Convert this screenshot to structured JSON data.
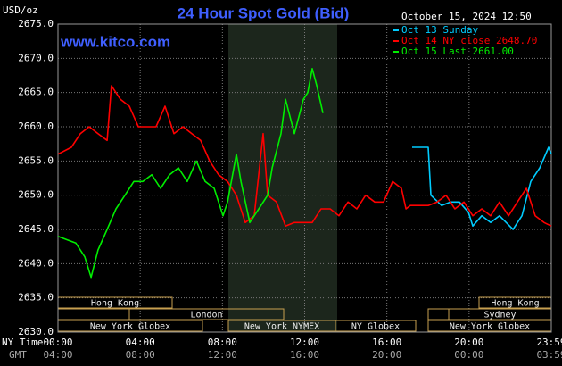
{
  "chart_data": {
    "type": "line",
    "title": "24 Hour Spot Gold (Bid)",
    "y_label": "USD/oz",
    "site": "www.kitco.com",
    "timestamp": "October 15, 2024 12:50",
    "x_label": "NY Time",
    "x2_label": "GMT",
    "xlim": [
      0,
      24
    ],
    "xticks": [
      {
        "value": 0,
        "label": "00:00"
      },
      {
        "value": 4,
        "label": "04:00"
      },
      {
        "value": 8,
        "label": "08:00"
      },
      {
        "value": 12,
        "label": "12:00"
      },
      {
        "value": 16,
        "label": "16:00"
      },
      {
        "value": 20,
        "label": "20:00"
      },
      {
        "value": 24,
        "label": "23:59"
      }
    ],
    "x2_tick_labels": [
      "04:00",
      "08:00",
      "12:00",
      "16:00",
      "20:00",
      "00:00",
      "03:59"
    ],
    "ylim": [
      2630,
      2675
    ],
    "yticks": [
      {
        "value": 2630,
        "label": "2630.0"
      },
      {
        "value": 2635,
        "label": "2635.0"
      },
      {
        "value": 2640,
        "label": "2640.0"
      },
      {
        "value": 2645,
        "label": "2645.0"
      },
      {
        "value": 2650,
        "label": "2650.0"
      },
      {
        "value": 2655,
        "label": "2655.0"
      },
      {
        "value": 2660,
        "label": "2660.0"
      },
      {
        "value": 2665,
        "label": "2665.0"
      },
      {
        "value": 2670,
        "label": "2670.0"
      },
      {
        "value": 2675,
        "label": "2675.0"
      }
    ],
    "grid": true,
    "sessions": [
      "Hong Kong",
      "London",
      "New York Globex",
      "New York NYMEX",
      "NY Globex",
      "Hong Kong",
      "Sydney",
      "New York Globex"
    ],
    "series": [
      {
        "name": "Oct 13 Sunday",
        "color": "#00ccff",
        "x": [
          17.23,
          18.01,
          18.14,
          18.66,
          19.1,
          19.53,
          19.97,
          20.18,
          20.62,
          21.05,
          21.48,
          22.14,
          22.57,
          23.0,
          23.44,
          23.87,
          24.0
        ],
        "values": [
          2657,
          2657,
          2650,
          2648.5,
          2649,
          2649,
          2647.5,
          2645.5,
          2647,
          2646,
          2647,
          2645,
          2647,
          2652,
          2654,
          2657,
          2656
        ]
      },
      {
        "name": "Oct 14 NY close 2648.70",
        "color": "#ff0000",
        "x": [
          0,
          0.65,
          1.09,
          1.52,
          1.95,
          2.39,
          2.6,
          3.04,
          3.47,
          3.91,
          4.34,
          4.77,
          5.21,
          5.64,
          6.08,
          6.51,
          6.94,
          7.38,
          7.81,
          8.25,
          8.68,
          9.11,
          9.55,
          9.98,
          10.2,
          10.63,
          11.07,
          11.5,
          11.94,
          12.37,
          12.8,
          13.24,
          13.67,
          14.11,
          14.54,
          14.97,
          15.41,
          15.84,
          16.28,
          16.71,
          16.93,
          17.14,
          18.01,
          18.45,
          18.88,
          19.31,
          19.75,
          20.18,
          20.62,
          21.05,
          21.48,
          21.92,
          22.35,
          22.79,
          23.22,
          23.65,
          24.0
        ],
        "values": [
          2656,
          2657,
          2659,
          2660,
          2659,
          2658,
          2666,
          2664,
          2663,
          2660,
          2660,
          2660,
          2663,
          2659,
          2660,
          2659,
          2658,
          2655,
          2653,
          2652,
          2650,
          2646,
          2647,
          2659,
          2650,
          2649,
          2645.5,
          2646,
          2646,
          2646,
          2648,
          2648,
          2647,
          2649,
          2648,
          2650,
          2649,
          2649,
          2652,
          2651,
          2648,
          2648.5,
          2648.5,
          2649,
          2650,
          2648,
          2649,
          2647,
          2648,
          2647,
          2649,
          2647,
          2649,
          2651,
          2647,
          2646,
          2645.5
        ]
      },
      {
        "name": "Oct 15 Last 2661.00",
        "color": "#00ee00",
        "x": [
          0,
          0.43,
          0.87,
          1.3,
          1.61,
          1.95,
          2.39,
          2.82,
          3.26,
          3.69,
          4.13,
          4.56,
          4.99,
          5.43,
          5.86,
          6.29,
          6.73,
          7.16,
          7.6,
          8.03,
          8.25,
          8.68,
          8.9,
          9.33,
          9.77,
          10.2,
          10.42,
          10.85,
          11.07,
          11.5,
          11.94,
          12.15,
          12.37,
          12.59,
          12.89
        ],
        "values": [
          2644,
          2643.5,
          2643,
          2641,
          2638,
          2642,
          2645,
          2648,
          2650,
          2652,
          2652,
          2653,
          2651,
          2653,
          2654,
          2652,
          2655,
          2652,
          2651,
          2647,
          2649,
          2656,
          2652,
          2646,
          2648,
          2650,
          2654,
          2659,
          2664,
          2659,
          2664,
          2665,
          2668.5,
          2666,
          2662
        ]
      }
    ]
  }
}
